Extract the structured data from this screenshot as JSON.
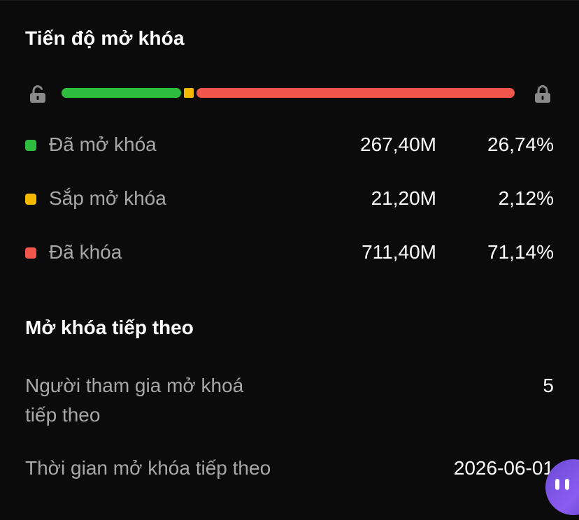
{
  "unlock_progress": {
    "title": "Tiến độ mở khóa",
    "lock_open_icon": "unlocked-padlock-icon",
    "lock_closed_icon": "locked-padlock-icon",
    "segments": [
      {
        "key": "unlocked",
        "percent": 26.74,
        "color": "#2fbd3f"
      },
      {
        "key": "upcoming",
        "percent": 2.12,
        "color": "#f5b800"
      },
      {
        "key": "locked",
        "percent": 71.14,
        "color": "#f2574c"
      }
    ],
    "rows": [
      {
        "label": "Đã mở khóa",
        "amount": "267,40M",
        "percent": "26,74%",
        "color": "#2fbd3f"
      },
      {
        "label": "Sắp mở khóa",
        "amount": "21,20M",
        "percent": "2,12%",
        "color": "#f5b800"
      },
      {
        "label": "Đã khóa",
        "amount": "711,40M",
        "percent": "71,14%",
        "color": "#f2574c"
      }
    ]
  },
  "next_unlock": {
    "title": "Mở khóa tiếp theo",
    "participants_label": "Người tham gia mở khoá tiếp theo",
    "participants_value": "5",
    "time_label": "Thời gian mở khóa tiếp theo",
    "time_value": "2026-06-01"
  },
  "assistant": {
    "icon": "assistant-bot-icon",
    "color": "#7a55e6"
  }
}
